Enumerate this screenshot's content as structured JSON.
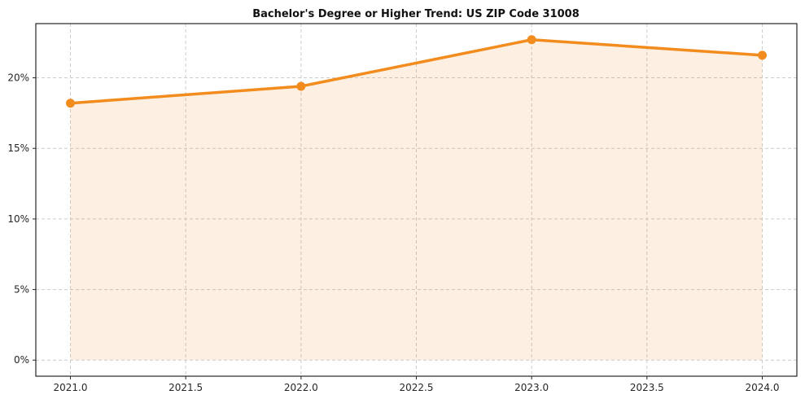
{
  "chart_data": {
    "type": "area",
    "title": "Bachelor's Degree or Higher Trend: US ZIP Code 31008",
    "series_name": "Bachelor's Degree or Higher %",
    "x": [
      2021,
      2022,
      2023,
      2024
    ],
    "values": [
      18.2,
      19.4,
      22.7,
      21.6
    ],
    "xlabel": "",
    "ylabel": "",
    "xlim": [
      2020.85,
      2024.15
    ],
    "ylim": [
      -1.14,
      23.84
    ],
    "x_ticks": [
      2021.0,
      2021.5,
      2022.0,
      2022.5,
      2023.0,
      2023.5,
      2024.0
    ],
    "x_tick_labels": [
      "2021.0",
      "2021.5",
      "2022.0",
      "2022.5",
      "2023.0",
      "2023.5",
      "2024.0"
    ],
    "y_ticks": [
      0,
      5,
      10,
      15,
      20
    ],
    "y_tick_labels": [
      "0%",
      "5%",
      "10%",
      "15%",
      "20%"
    ],
    "grid": true,
    "legend_position": "none",
    "line_color": "#f28c1e",
    "fill_color": "#fdeedd",
    "fill_opacity": 0.13,
    "marker": "circle",
    "axis_color": "#262626",
    "grid_color": "#cccccc",
    "background_color": "#ffffff"
  }
}
